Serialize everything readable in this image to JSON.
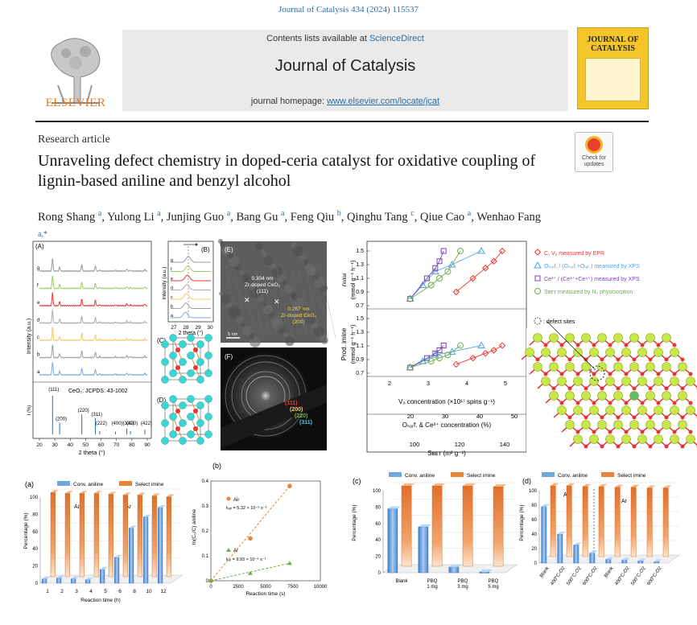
{
  "header": {
    "citation": "Journal of Catalysis 434 (2024) 115537",
    "contents_prefix": "Contents lists available at ",
    "contents_link": "ScienceDirect",
    "journal_name": "Journal of Catalysis",
    "homepage_prefix": "journal homepage: ",
    "homepage_link": "www.elsevier.com/locate/jcat",
    "publisher": "ELSEVIER",
    "cover_title_1": "JOURNAL OF",
    "cover_title_2": "CATALYSIS",
    "check_updates": "Check for updates"
  },
  "article": {
    "type": "Research article",
    "title": "Unraveling defect chemistry in doped-ceria catalyst for oxidative coupling of lignin-based aniline and benzyl alcohol",
    "authors": [
      {
        "name": "Rong Shang",
        "aff": "a"
      },
      {
        "name": "Yulong Li",
        "aff": "a"
      },
      {
        "name": "Junjing Guo",
        "aff": "a"
      },
      {
        "name": "Bang Gu",
        "aff": "a"
      },
      {
        "name": "Feng Qiu",
        "aff": "b"
      },
      {
        "name": "Qinghu Tang",
        "aff": "c"
      },
      {
        "name": "Qiue Cao",
        "aff": "a"
      },
      {
        "name": "Wenhao Fang",
        "aff": "a,*"
      }
    ]
  },
  "figure": {
    "panelA": {
      "label": "(A)",
      "ylabel": "Intensity (a.u.)",
      "xlabel": "2 theta (°)",
      "patterns": [
        "g",
        "f",
        "e",
        "d",
        "c",
        "b",
        "a"
      ],
      "colors": [
        "#999999",
        "#9ccc65",
        "#e53935",
        "#aaaaaa",
        "#f4c76a",
        "#9e9e9e",
        "#7fa8d8"
      ],
      "ref_title": "CeO₂: JCPDS: 43-1002",
      "ref_ylabel": "I (%)",
      "ref_peaks": [
        [
          "(111)",
          28.5,
          100
        ],
        [
          "(200)",
          33.1,
          30
        ],
        [
          "(220)",
          47.5,
          52
        ],
        [
          "(311)",
          56.3,
          42
        ],
        [
          "(222)",
          59.1,
          8
        ],
        [
          "(400)",
          69.4,
          7
        ],
        [
          "(331)",
          76.7,
          15
        ],
        [
          "(420)",
          79.1,
          8
        ],
        [
          "(422)",
          88.4,
          12
        ]
      ],
      "xticks": [
        "20",
        "30",
        "40",
        "50",
        "60",
        "70",
        "80",
        "90"
      ]
    },
    "panelB": {
      "label": "(B)",
      "ylabel": "Intensity (a.u.)",
      "xlabel": "2 theta (°)",
      "xticks": [
        "27",
        "28",
        "29",
        "30"
      ],
      "patterns": [
        "g",
        "f",
        "e",
        "d",
        "c",
        "b",
        "a"
      ]
    },
    "panelC": {
      "label": "(C)"
    },
    "panelD": {
      "label": "(D)"
    },
    "panelE": {
      "label": "(E)",
      "ann1_1": "0.304 nm",
      "ann1_2": "Zr-doped CeO₂",
      "ann1_3": "(111)",
      "ann2_1": "0.267 nm",
      "ann2_2": "Zr-doped CeO₂",
      "ann2_3": "(200)",
      "scale": "5 nm"
    },
    "panelF": {
      "label": "(F)",
      "rings": [
        "(111)",
        "(200)",
        "(220)",
        "(311)"
      ],
      "ring_colors": [
        "#e53935",
        "#f9c74f",
        "#7cb342",
        "#4fc3f7"
      ]
    },
    "correlation": {
      "ylabel_top_1": "r",
      "ylabel_top_sub": "initial",
      "ylabel_top_2": "(mmol g⁻¹ h⁻¹)",
      "ylabel_bot_1": "Prod. imine",
      "ylabel_bot_2": "(mmol g⁻¹ h⁻¹)",
      "yticks": [
        "1.5",
        "1.3",
        "1.1",
        "0.9",
        "0.7"
      ],
      "x1_label": "Vₒ concentration (×10¹⁷ spins g⁻¹)",
      "x1_ticks": [
        "2",
        "3",
        "4",
        "5"
      ],
      "x2_label": "Oₛᵤᵣf. & Ce³⁺ concentration (%)",
      "x2_ticks": [
        "20",
        "30",
        "40",
        "50"
      ],
      "x3_label": "Sʙᴇᴛ (m² g⁻¹)",
      "x3_ticks": [
        "100",
        "120",
        "140"
      ],
      "legend": [
        {
          "text": "C, Vₒ measured by EPR",
          "color": "#e53935"
        },
        {
          "text": "Oₛᵤᵣf. / (Oₛᵤᵣf.+Oₗₐₜ.) measured by XPS",
          "color": "#4fa3e0"
        },
        {
          "text": "Ce³⁺ / (Ce³⁺+Ce⁴⁺) measured by XPS",
          "color": "#7b3fb5"
        },
        {
          "text": "Sʙᴇᴛ measured by N₂ physisorption",
          "color": "#6ab04c"
        }
      ],
      "defect_label": ": defect sites"
    },
    "chart_a": {
      "label": "(a)",
      "legend_conv": "Conv. aniline",
      "legend_sel": "Select imine",
      "ylabel": "Percentage (%)",
      "xlabel": "Reaction time (h)",
      "region1": "Air",
      "region2": "Ar"
    },
    "chart_b": {
      "label": "(b)",
      "ylabel": "ln(C₀/C) aniline",
      "xlabel": "Reaction time (s)",
      "air_text": "Air",
      "air_k": "kₐᵢᵣ = 5.32 × 10⁻⁵ s⁻¹",
      "ar_text": "Ar",
      "ar_k": "kₐᵣ = 9.93 × 10⁻⁶ s⁻¹"
    },
    "chart_c": {
      "label": "(c)",
      "legend_conv": "Conv. aniline",
      "legend_sel": "Select imine",
      "ylabel": "Percentage (%)"
    },
    "chart_d": {
      "label": "(d)",
      "legend_conv": "Conv. aniline",
      "legend_sel": "Select imine",
      "ylabel": "Percentage (%)",
      "region1": "Air",
      "region2": "Ar"
    }
  },
  "chart_data": [
    {
      "type": "bar",
      "title": "(a)",
      "xlabel": "Reaction time (h)",
      "ylabel": "Percentage (%)",
      "ylim": [
        0,
        100
      ],
      "categories": [
        "1",
        "2",
        "3",
        "4",
        "5",
        "6",
        "8",
        "10",
        "12"
      ],
      "series": [
        {
          "name": "Conv. aniline",
          "color": "#6fa8dc",
          "values": [
            5,
            6,
            5,
            4,
            16,
            30,
            64,
            77,
            88
          ]
        },
        {
          "name": "Select imine",
          "color": "#e8833a",
          "values": [
            98,
            97,
            97,
            97,
            96,
            95,
            95,
            94,
            93
          ]
        }
      ]
    },
    {
      "type": "scatter",
      "title": "(b)",
      "xlabel": "Reaction time (s)",
      "ylabel": "ln(C₀/C) aniline",
      "xlim": [
        0,
        10000
      ],
      "ylim": [
        0,
        0.4
      ],
      "xticks": [
        0,
        2500,
        5000,
        7500,
        10000
      ],
      "yticks": [
        0,
        0.1,
        0.2,
        0.3,
        0.4
      ],
      "series": [
        {
          "name": "Air",
          "color": "#e8833a",
          "points": [
            [
              0,
              0
            ],
            [
              3600,
              0.17
            ],
            [
              7200,
              0.38
            ]
          ]
        },
        {
          "name": "Ar",
          "color": "#6ab04c",
          "points": [
            [
              0,
              0
            ],
            [
              3600,
              0.03
            ],
            [
              7200,
              0.07
            ]
          ]
        }
      ]
    },
    {
      "type": "bar",
      "title": "(c)",
      "ylabel": "Percentage (%)",
      "ylim": [
        0,
        100
      ],
      "categories": [
        "Blank",
        "PBQ 1 mg",
        "PBQ 3 mg",
        "PBQ 5 mg"
      ],
      "series": [
        {
          "name": "Conv. aniline",
          "color": "#6fa8dc",
          "values": [
            78,
            56,
            7,
            1
          ]
        },
        {
          "name": "Select imine",
          "color": "#e8833a",
          "values": [
            98,
            98,
            98,
            97
          ]
        }
      ]
    },
    {
      "type": "bar",
      "title": "(d)",
      "ylabel": "Percentage (%)",
      "ylim": [
        0,
        100
      ],
      "categories": [
        "Blank",
        "400°C-O2",
        "500°C-O2",
        "600°C-O2",
        "Blank",
        "400°C-O2",
        "500°C-O2",
        "600°C-O2"
      ],
      "series": [
        {
          "name": "Conv. aniline",
          "color": "#6fa8dc",
          "values": [
            78,
            40,
            25,
            14,
            5,
            4,
            3,
            2
          ]
        },
        {
          "name": "Select imine",
          "color": "#e8833a",
          "values": [
            98,
            98,
            97,
            97,
            96,
            96,
            95,
            95
          ]
        }
      ]
    },
    {
      "type": "scatter",
      "title": "",
      "ylabel": "r initial (mmol g⁻¹ h⁻¹)",
      "xlabel": "Vₒ concentration (×10¹⁷ spins g⁻¹)",
      "ylim": [
        0.7,
        1.5
      ],
      "series": [
        {
          "name": "C, Vₒ measured by EPR",
          "color": "#e53935",
          "points": [
            [
              3.9,
              0.9
            ],
            [
              4.3,
              1.1
            ],
            [
              4.6,
              1.25
            ],
            [
              4.8,
              1.35
            ],
            [
              5.0,
              1.5
            ]
          ]
        },
        {
          "name": "Oₛᵤᵣf. / (Oₛᵤᵣf.+Oₗₐₜ.) measured by XPS",
          "color": "#4fa3e0",
          "points": [
            [
              2.8,
              0.8
            ],
            [
              3.1,
              1.0
            ],
            [
              3.4,
              1.2
            ],
            [
              3.8,
              1.3
            ],
            [
              4.5,
              1.5
            ]
          ]
        },
        {
          "name": "Ce³⁺ / (Ce³⁺+Ce⁴⁺) measured by XPS",
          "color": "#7b3fb5",
          "points": [
            [
              2.8,
              0.8
            ],
            [
              3.2,
              1.1
            ],
            [
              3.4,
              1.25
            ],
            [
              3.5,
              1.35
            ],
            [
              3.6,
              1.5
            ]
          ]
        },
        {
          "name": "Sʙᴇᴛ measured by N₂ physisorption",
          "color": "#6ab04c",
          "points": [
            [
              2.8,
              0.8
            ],
            [
              3.3,
              1.0
            ],
            [
              3.5,
              1.1
            ],
            [
              3.7,
              1.2
            ],
            [
              4.0,
              1.5
            ]
          ]
        }
      ]
    }
  ]
}
